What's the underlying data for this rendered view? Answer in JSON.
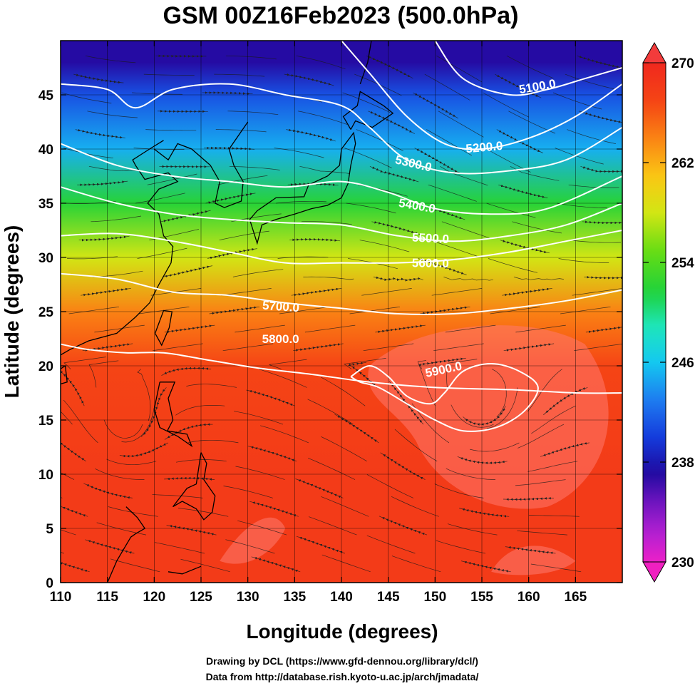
{
  "chart_data": {
    "type": "heatmap",
    "title": "GSM 00Z16Feb2023 (500.0hPa)",
    "xlabel": "Longitude (degrees)",
    "ylabel": "Latitude (degrees)",
    "xlim": [
      110,
      170
    ],
    "ylim": [
      0,
      50
    ],
    "x_ticks": [
      110,
      115,
      120,
      125,
      130,
      135,
      140,
      145,
      150,
      155,
      160,
      165
    ],
    "y_ticks": [
      0,
      5,
      10,
      15,
      20,
      25,
      30,
      35,
      40,
      45
    ],
    "x_tick_labels": [
      "110",
      "115",
      "120",
      "125",
      "130",
      "135",
      "140",
      "145",
      "150",
      "155",
      "160",
      "165"
    ],
    "y_tick_labels": [
      "0",
      "5",
      "10",
      "15",
      "20",
      "25",
      "30",
      "35",
      "40",
      "45"
    ],
    "grid": true,
    "colorbar": {
      "range": [
        230,
        270
      ],
      "ticks": [
        230,
        238,
        246,
        254,
        262,
        270
      ],
      "tick_labels": [
        "230",
        "238",
        "246",
        "254",
        "262",
        "270"
      ],
      "placement": "right"
    },
    "fill_field": "temperature",
    "fill_description_latitude_bands": [
      {
        "lat": 48,
        "value": 237
      },
      {
        "lat": 45,
        "value": 241
      },
      {
        "lat": 40,
        "value": 245
      },
      {
        "lat": 35,
        "value": 252
      },
      {
        "lat": 30,
        "value": 258
      },
      {
        "lat": 25,
        "value": 264
      },
      {
        "lat": 20,
        "value": 267
      },
      {
        "lat": 10,
        "value": 268
      },
      {
        "lat": 0,
        "value": 268
      }
    ],
    "contours": [
      {
        "label": "5100.0",
        "value": 5100,
        "points": [
          [
            150,
            50
          ],
          [
            153,
            46.5
          ],
          [
            158,
            45
          ],
          [
            162,
            45.5
          ],
          [
            166,
            46.5
          ],
          [
            170,
            47.5
          ]
        ]
      },
      {
        "label": "5200.0",
        "value": 5200,
        "points": [
          [
            140,
            50
          ],
          [
            143,
            47
          ],
          [
            147,
            43
          ],
          [
            151,
            40.5
          ],
          [
            155,
            40
          ],
          [
            160,
            41
          ],
          [
            165,
            43
          ],
          [
            170,
            46
          ]
        ]
      },
      {
        "label": "5300.0",
        "value": 5300,
        "points": [
          [
            110,
            46
          ],
          [
            115,
            45.5
          ],
          [
            118,
            43.8
          ],
          [
            122,
            45.5
          ],
          [
            128,
            46
          ],
          [
            134,
            45
          ],
          [
            140,
            44
          ],
          [
            143,
            42
          ],
          [
            147,
            39
          ],
          [
            152,
            37.8
          ],
          [
            158,
            38
          ],
          [
            164,
            39
          ],
          [
            170,
            42
          ]
        ]
      },
      {
        "label": "5400.0",
        "value": 5400,
        "points": [
          [
            110,
            40.5
          ],
          [
            116,
            38.5
          ],
          [
            122,
            37.5
          ],
          [
            128,
            37
          ],
          [
            134,
            36.5
          ],
          [
            140,
            37
          ],
          [
            145,
            36
          ],
          [
            150,
            34.5
          ],
          [
            156,
            34
          ],
          [
            162,
            34.5
          ],
          [
            170,
            37.5
          ]
        ]
      },
      {
        "label": "5500.0",
        "value": 5500,
        "points": [
          [
            110,
            36.5
          ],
          [
            116,
            35
          ],
          [
            122,
            34
          ],
          [
            128,
            33.5
          ],
          [
            134,
            33.2
          ],
          [
            140,
            33
          ],
          [
            146,
            32
          ],
          [
            152,
            31.5
          ],
          [
            158,
            32
          ],
          [
            164,
            33
          ],
          [
            170,
            35
          ]
        ]
      },
      {
        "label": "5600.0",
        "value": 5600,
        "points": [
          [
            110,
            32
          ],
          [
            116,
            32.2
          ],
          [
            122,
            31.5
          ],
          [
            128,
            30.5
          ],
          [
            134,
            29.5
          ],
          [
            140,
            29.5
          ],
          [
            146,
            29.5
          ],
          [
            152,
            29.8
          ],
          [
            158,
            30.5
          ],
          [
            164,
            31.5
          ],
          [
            170,
            32.5
          ]
        ]
      },
      {
        "label": "5700.0",
        "value": 5700,
        "points": [
          [
            110,
            28.5
          ],
          [
            116,
            28
          ],
          [
            122,
            26.8
          ],
          [
            128,
            26.5
          ],
          [
            134,
            25.8
          ],
          [
            140,
            25.3
          ],
          [
            146,
            24.8
          ],
          [
            152,
            24.8
          ],
          [
            158,
            25.3
          ],
          [
            164,
            26
          ],
          [
            170,
            27
          ]
        ]
      },
      {
        "label": "5800.0",
        "value": 5800,
        "points": [
          [
            110,
            22
          ],
          [
            113,
            21.5
          ],
          [
            117,
            21.2
          ],
          [
            121,
            21.2
          ],
          [
            126,
            20.5
          ],
          [
            131,
            19.8
          ],
          [
            137,
            19.2
          ],
          [
            143,
            18.5
          ],
          [
            150,
            18
          ],
          [
            158,
            17.8
          ],
          [
            165,
            17.5
          ],
          [
            170,
            17.5
          ]
        ]
      },
      {
        "label": "5900.0",
        "value": 5900,
        "points": [
          [
            141,
            19
          ],
          [
            143,
            20
          ],
          [
            145,
            19
          ],
          [
            147,
            17.2
          ],
          [
            149.5,
            16.5
          ],
          [
            151,
            17.5
          ],
          [
            153,
            19.5
          ],
          [
            156,
            20.2
          ],
          [
            159,
            19.5
          ],
          [
            161,
            18
          ],
          [
            159.5,
            15.8
          ],
          [
            156.5,
            14.3
          ],
          [
            153,
            14
          ],
          [
            150,
            15
          ],
          [
            147,
            16.5
          ],
          [
            144,
            18
          ],
          [
            142,
            18.5
          ],
          [
            141,
            19
          ]
        ]
      }
    ]
  },
  "credits": {
    "line1": "Drawing by DCL (https://www.gfd-dennou.org/library/dcl/)",
    "line2": "Data from http://database.rish.kyoto-u.ac.jp/arch/jmadata/"
  }
}
